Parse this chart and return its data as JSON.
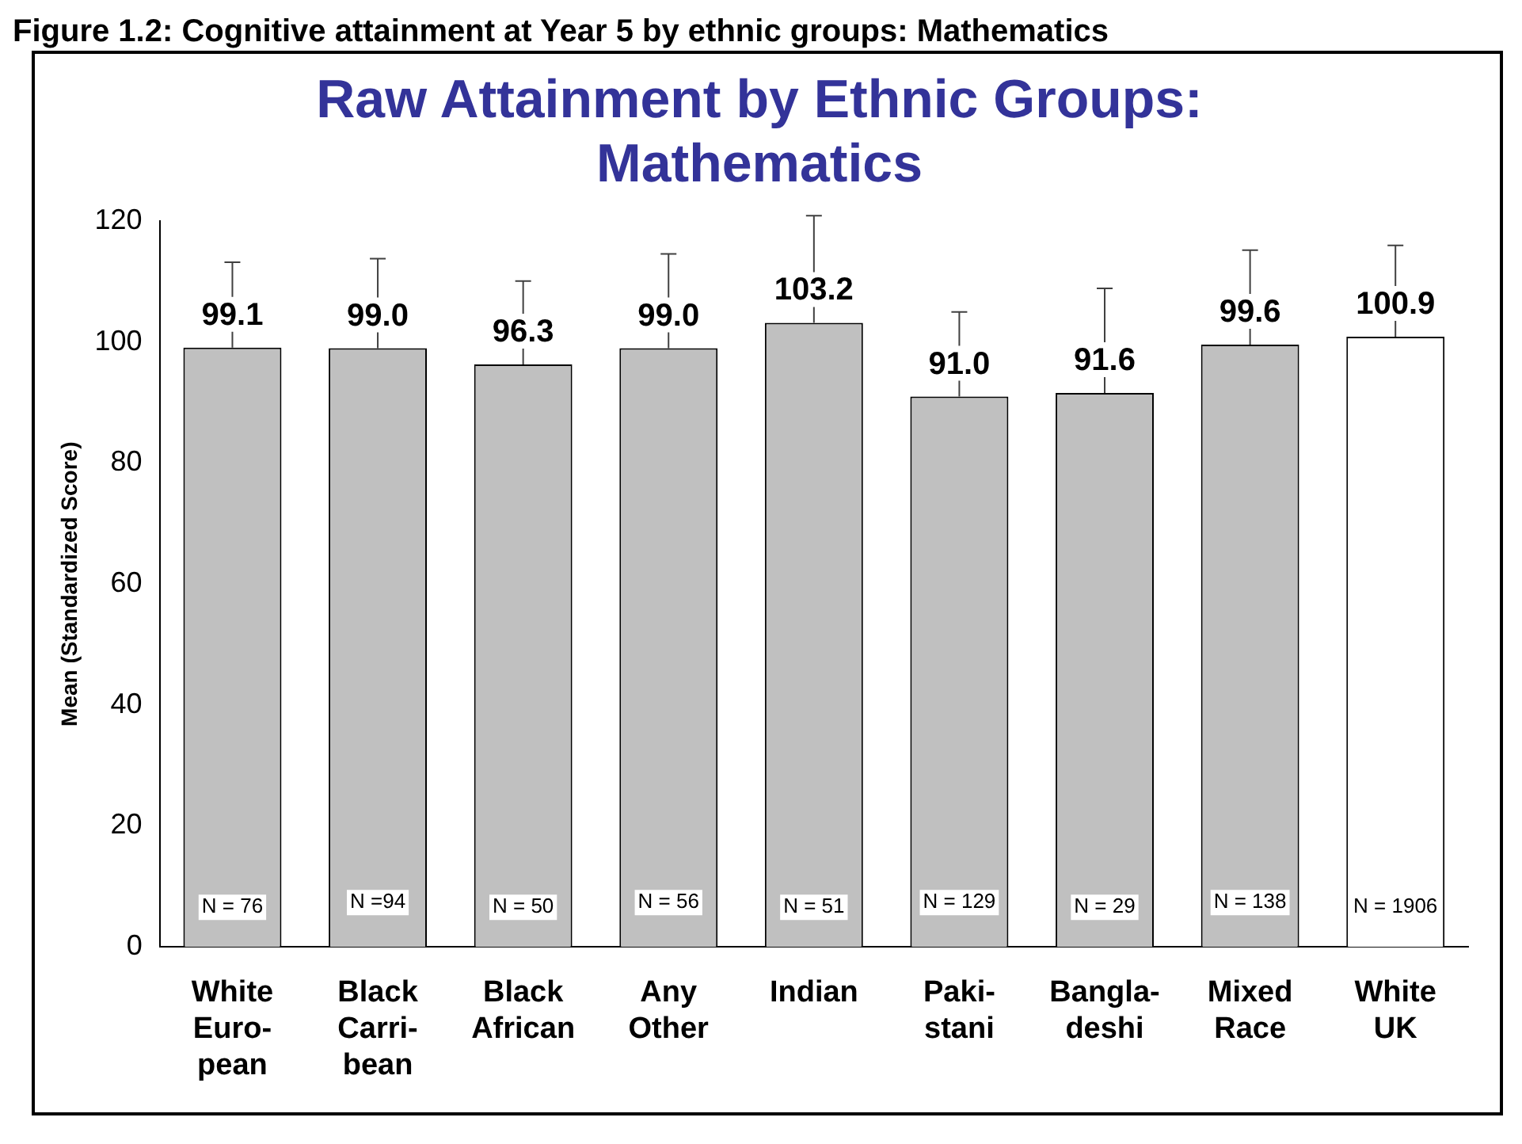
{
  "chart_data": {
    "type": "bar",
    "title": "Raw Attainment by Ethnic Groups:\nMathematics",
    "ylabel": "Mean (Standardized Score)",
    "categories": [
      "White\nEuro-\npean",
      "Black\nCarri-\nbean",
      "Black\nAfrican",
      "Any\nOther",
      "Indian",
      "Paki-\nstani",
      "Bangla-\ndeshi",
      "Mixed\nRace",
      "White\nUK"
    ],
    "values": [
      99.1,
      99.0,
      96.3,
      99.0,
      103.2,
      91.0,
      91.6,
      99.6,
      100.9
    ],
    "colors": [
      "#c0c0c0",
      "#c0c0c0",
      "#c0c0c0",
      "#c0c0c0",
      "#c0c0c0",
      "#c0c0c0",
      "#c0c0c0",
      "#c0c0c0",
      "#ffffff"
    ],
    "value_labels": [
      "99.1",
      "99.0",
      "96.3",
      "99.0",
      "103.2",
      "91.0",
      "91.6",
      "99.6",
      "100.9"
    ],
    "errors": [
      [
        99.1,
        113.2
      ],
      [
        99.0,
        113.8
      ],
      [
        96.3,
        110.1
      ],
      [
        99.0,
        114.6
      ],
      [
        103.2,
        120.9
      ],
      [
        91.0,
        105.0
      ],
      [
        91.6,
        108.9
      ],
      [
        99.6,
        115.2
      ],
      [
        100.9,
        116.0
      ]
    ],
    "ylim": [
      0,
      120
    ],
    "yticks": [
      0,
      20,
      40,
      60,
      80,
      100,
      120
    ],
    "grid": false,
    "legend": false,
    "annotations": [
      "Figure 1.2: Cognitive attainment at Year 5 by ethnic groups: Mathematics",
      "N = 76",
      "N =94",
      "N = 50",
      "N = 56",
      "N = 51",
      "N = 129",
      "N = 29",
      "N = 138",
      "N = 1906"
    ]
  }
}
